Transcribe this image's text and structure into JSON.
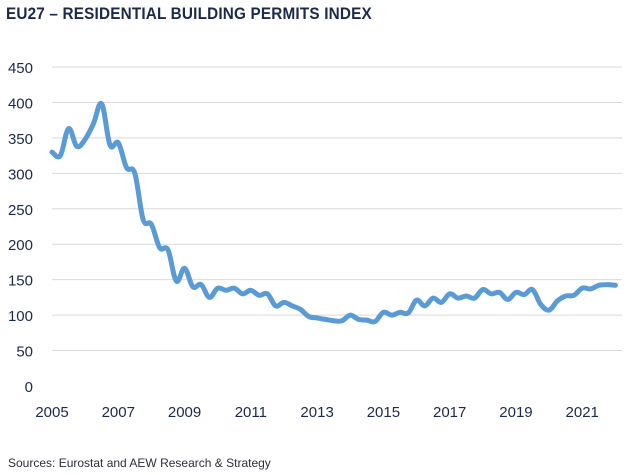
{
  "title": "EU27 – RESIDENTIAL BUILDING PERMITS INDEX",
  "source": "Sources: Eurostat and AEW Research & Strategy",
  "colors": {
    "line": "#5b9bd5",
    "grid": "#d9d9d9",
    "text": "#1b2a4a"
  },
  "chart_data": {
    "type": "line",
    "title": "EU27 – RESIDENTIAL BUILDING PERMITS INDEX",
    "xlabel": "",
    "ylabel": "",
    "xlim": [
      2005,
      2022.2
    ],
    "ylim": [
      0,
      450
    ],
    "yticks": [
      0,
      50,
      100,
      150,
      200,
      250,
      300,
      350,
      400,
      450
    ],
    "xticks": [
      2005,
      2007,
      2009,
      2011,
      2013,
      2015,
      2017,
      2019,
      2021
    ],
    "grid": true,
    "legend": "none",
    "series": [
      {
        "x": [
          2005.0,
          2005.25,
          2005.5,
          2005.75,
          2006.0,
          2006.25,
          2006.5,
          2006.75,
          2007.0,
          2007.25,
          2007.5,
          2007.75,
          2008.0,
          2008.25,
          2008.5,
          2008.75,
          2009.0,
          2009.25,
          2009.5,
          2009.75,
          2010.0,
          2010.25,
          2010.5,
          2010.75,
          2011.0,
          2011.25,
          2011.5,
          2011.75,
          2012.0,
          2012.25,
          2012.5,
          2012.75,
          2013.0,
          2013.25,
          2013.5,
          2013.75,
          2014.0,
          2014.25,
          2014.5,
          2014.75,
          2015.0,
          2015.25,
          2015.5,
          2015.75,
          2016.0,
          2016.25,
          2016.5,
          2016.75,
          2017.0,
          2017.25,
          2017.5,
          2017.75,
          2018.0,
          2018.25,
          2018.5,
          2018.75,
          2019.0,
          2019.25,
          2019.5,
          2019.75,
          2020.0,
          2020.25,
          2020.5,
          2020.75,
          2021.0,
          2021.25,
          2021.5,
          2021.75,
          2022.0
        ],
        "values": [
          330,
          325,
          363,
          338,
          348,
          370,
          398,
          340,
          343,
          308,
          300,
          235,
          228,
          195,
          192,
          148,
          166,
          140,
          143,
          125,
          138,
          135,
          138,
          130,
          135,
          128,
          130,
          113,
          118,
          113,
          108,
          98,
          96,
          94,
          92,
          92,
          100,
          94,
          93,
          91,
          104,
          100,
          104,
          103,
          121,
          113,
          124,
          118,
          130,
          124,
          127,
          124,
          136,
          130,
          132,
          122,
          132,
          129,
          136,
          115,
          107,
          120,
          127,
          128,
          138,
          137,
          142,
          143,
          142
        ]
      }
    ]
  }
}
